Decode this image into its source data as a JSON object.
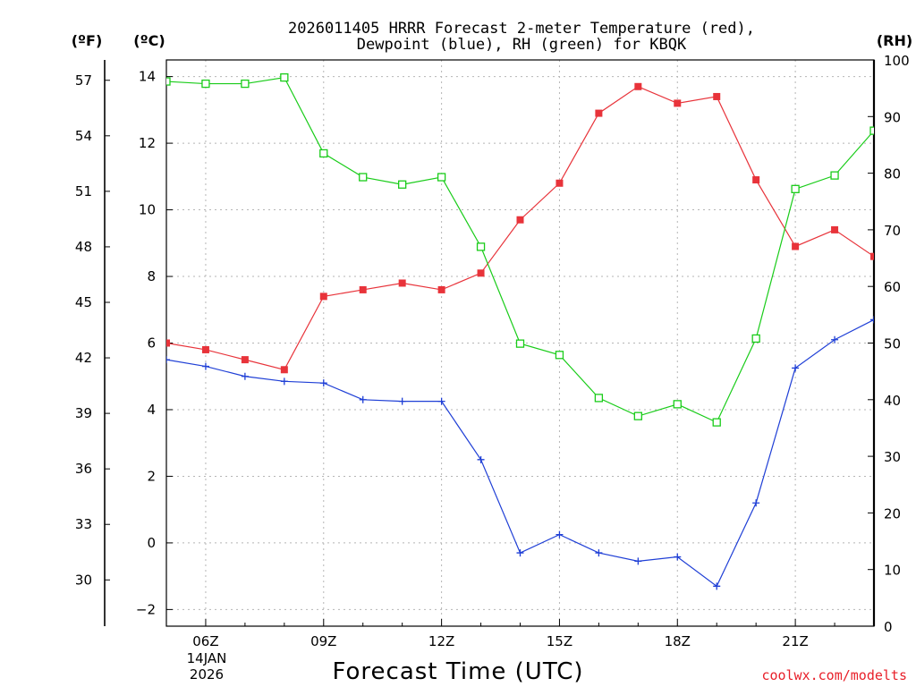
{
  "chart_data": {
    "type": "line",
    "title_line1": "2026011405 HRRR Forecast 2-meter Temperature (red),",
    "title_line2": "Dewpoint (blue), RH (green) for KBQK",
    "xlabel": "Forecast Time (UTC)",
    "credit": "coolwx.com/modelts",
    "units": {
      "fahrenheit": "(ºF)",
      "celsius": "(ºC)",
      "rh": "(RH)"
    },
    "x": [
      "05Z",
      "06Z",
      "07Z",
      "08Z",
      "09Z",
      "10Z",
      "11Z",
      "12Z",
      "13Z",
      "14Z",
      "15Z",
      "16Z",
      "17Z",
      "18Z",
      "19Z",
      "20Z",
      "21Z",
      "22Z",
      "23Z"
    ],
    "x_tick_labels": [
      "06Z",
      "09Z",
      "12Z",
      "15Z",
      "18Z",
      "21Z"
    ],
    "x_tick_hours": [
      6,
      9,
      12,
      15,
      18,
      21
    ],
    "date_label_line1": "14JAN",
    "date_label_line2": "2026",
    "y_celsius_ticks": [
      "14",
      "12",
      "10",
      "8",
      "6",
      "4",
      "2",
      "0",
      "−2"
    ],
    "y_celsius_tick_values": [
      14,
      12,
      10,
      8,
      6,
      4,
      2,
      0,
      -2
    ],
    "y_fahrenheit_ticks": [
      "57",
      "54",
      "51",
      "48",
      "45",
      "42",
      "39",
      "36",
      "33",
      "30"
    ],
    "y_fahrenheit_tick_values": [
      57,
      54,
      51,
      48,
      45,
      42,
      39,
      36,
      33,
      30
    ],
    "y_rh_ticks": [
      "100",
      "90",
      "80",
      "70",
      "60",
      "50",
      "40",
      "30",
      "20",
      "10",
      "0"
    ],
    "y_rh_tick_values": [
      100,
      90,
      80,
      70,
      60,
      50,
      40,
      30,
      20,
      10,
      0
    ],
    "ylim_celsius": [
      -2.5,
      14.5
    ],
    "ylim_rh": [
      0,
      100
    ],
    "xlim_hours": [
      5,
      23
    ],
    "series": [
      {
        "name": "2-meter Temperature",
        "unit": "°C",
        "color": "#e8333a",
        "marker": "square-filled",
        "values": [
          6.0,
          5.8,
          5.5,
          5.2,
          7.4,
          7.6,
          7.8,
          7.6,
          8.1,
          9.7,
          10.8,
          12.9,
          13.7,
          13.2,
          13.4,
          10.9,
          8.9,
          9.4,
          8.6
        ]
      },
      {
        "name": "Dewpoint",
        "unit": "°C",
        "color": "#1f3fd6",
        "marker": "plus",
        "values": [
          5.5,
          5.3,
          5.0,
          4.85,
          4.8,
          4.3,
          4.25,
          4.25,
          2.5,
          -0.3,
          0.25,
          -0.3,
          -0.55,
          -0.42,
          -1.3,
          1.2,
          5.25,
          6.1,
          6.7
        ]
      },
      {
        "name": "Relative Humidity",
        "unit": "%",
        "color": "#19cc19",
        "marker": "square-open",
        "values": [
          96.2,
          95.8,
          95.8,
          96.9,
          83.5,
          79.3,
          78.0,
          79.3,
          67.0,
          49.9,
          47.9,
          40.3,
          37.1,
          39.2,
          36.0,
          50.8,
          77.2,
          79.6,
          87.5
        ]
      }
    ]
  }
}
